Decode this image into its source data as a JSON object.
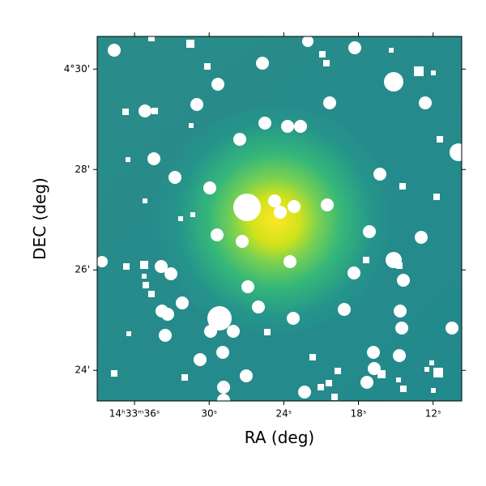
{
  "chart_data": {
    "type": "image",
    "x_label": "RA (deg)",
    "y_label": "DEC (deg)",
    "xlim": [
      39.0,
      9.7
    ],
    "xticks": [
      {
        "value": 36,
        "label": "14ʰ33ᵐ36ˢ"
      },
      {
        "value": 30,
        "label": "30ˢ"
      },
      {
        "value": 24,
        "label": "24ˢ"
      },
      {
        "value": 18,
        "label": "18ˢ"
      },
      {
        "value": 12,
        "label": "12ˢ"
      }
    ],
    "ylim": [
      23.39,
      30.65
    ],
    "yticks": [
      {
        "value": 30,
        "label": "4°30'"
      },
      {
        "value": 28,
        "label": "28'"
      },
      {
        "value": 26,
        "label": "26'"
      },
      {
        "value": 24,
        "label": "24'"
      }
    ]
  }
}
